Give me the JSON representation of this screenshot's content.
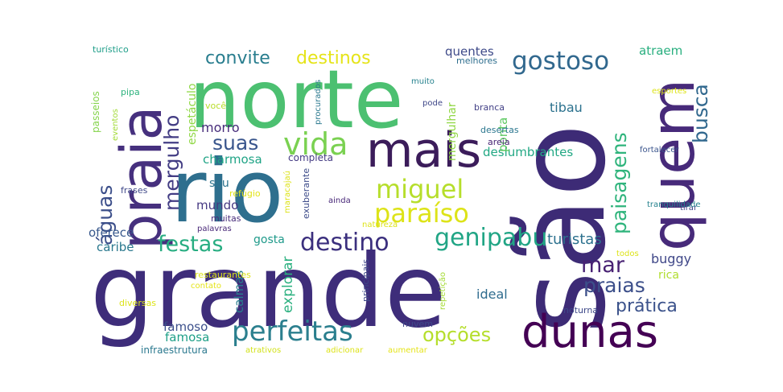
{
  "wordcloud": {
    "palette": "viridis",
    "background": "#ffffff",
    "words": [
      {
        "text": "grande",
        "color": "#3e2d7a"
      },
      {
        "text": "são",
        "color": "#3d2b76"
      },
      {
        "text": "rio",
        "color": "#2e6f8e"
      },
      {
        "text": "norte",
        "color": "#4cc071"
      },
      {
        "text": "quem",
        "color": "#472a7a"
      },
      {
        "text": "praia",
        "color": "#46307e"
      },
      {
        "text": "mais",
        "color": "#3b1c5a"
      },
      {
        "text": "dunas",
        "color": "#440154"
      },
      {
        "text": "perfeitas",
        "color": "#2b7f8e"
      },
      {
        "text": "vida",
        "color": "#7ad151"
      },
      {
        "text": "miguel",
        "color": "#b6de2b"
      },
      {
        "text": "paraíso",
        "color": "#dde318"
      },
      {
        "text": "genipabu",
        "color": "#21a585"
      },
      {
        "text": "destino",
        "color": "#3b2f7e"
      },
      {
        "text": "festas",
        "color": "#27ad81"
      },
      {
        "text": "gostoso",
        "color": "#31688e"
      },
      {
        "text": "convite",
        "color": "#287d8e"
      },
      {
        "text": "destinos",
        "color": "#e5e419"
      },
      {
        "text": "mergulho",
        "color": "#433d84"
      },
      {
        "text": "águas",
        "color": "#3c4f8a"
      },
      {
        "text": "suas",
        "color": "#39558c"
      },
      {
        "text": "paisagens",
        "color": "#2fb47c"
      },
      {
        "text": "busca",
        "color": "#31688e"
      },
      {
        "text": "mar",
        "color": "#482173"
      },
      {
        "text": "praias",
        "color": "#3c4f8a"
      },
      {
        "text": "prática",
        "color": "#3b528b"
      },
      {
        "text": "opções",
        "color": "#b5de2b"
      },
      {
        "text": "turistas",
        "color": "#2c718e"
      },
      {
        "text": "deslumbrantes",
        "color": "#22a884"
      },
      {
        "text": "quentes",
        "color": "#3e4a89"
      },
      {
        "text": "atraem",
        "color": "#29af7f"
      },
      {
        "text": "tibau",
        "color": "#2c728e"
      },
      {
        "text": "ponta",
        "color": "#5ec962"
      },
      {
        "text": "mergulhar",
        "color": "#90d743"
      },
      {
        "text": "morro",
        "color": "#472c7a"
      },
      {
        "text": "charmosa",
        "color": "#20a486"
      },
      {
        "text": "espetáculo",
        "color": "#8fd744"
      },
      {
        "text": "passeios",
        "color": "#84d44b"
      },
      {
        "text": "turístico",
        "color": "#1f9e89"
      },
      {
        "text": "você",
        "color": "#b8de29"
      },
      {
        "text": "pipa",
        "color": "#2db27d"
      },
      {
        "text": "eventos",
        "color": "#a2da37"
      },
      {
        "text": "procurados",
        "color": "#2a788e"
      },
      {
        "text": "melhores",
        "color": "#2e6e8e"
      },
      {
        "text": "muito",
        "color": "#26828e"
      },
      {
        "text": "pode",
        "color": "#3f4788"
      },
      {
        "text": "esportes",
        "color": "#dde318"
      },
      {
        "text": "branca",
        "color": "#424086"
      },
      {
        "text": "desertas",
        "color": "#2a768e"
      },
      {
        "text": "areia",
        "color": "#482475"
      },
      {
        "text": "todos",
        "color": "#dde318"
      },
      {
        "text": "fortalecer",
        "color": "#3a548c"
      },
      {
        "text": "completa",
        "color": "#443a83"
      },
      {
        "text": "seu",
        "color": "#2b748e"
      },
      {
        "text": "refúgio",
        "color": "#e2e418"
      },
      {
        "text": "frases",
        "color": "#3f4889"
      },
      {
        "text": "maracajaú",
        "color": "#dde318"
      },
      {
        "text": "exuberante",
        "color": "#3e4c8a"
      },
      {
        "text": "ainda",
        "color": "#482878"
      },
      {
        "text": "tirar",
        "color": "#414487"
      },
      {
        "text": "tranquilidade",
        "color": "#26828e"
      },
      {
        "text": "mundo",
        "color": "#453882"
      },
      {
        "text": "muitas",
        "color": "#472c7a"
      },
      {
        "text": "palavras",
        "color": "#482878"
      },
      {
        "text": "natureza",
        "color": "#dde318"
      },
      {
        "text": "oferece",
        "color": "#38588c"
      },
      {
        "text": "caribe",
        "color": "#2a788e"
      },
      {
        "text": "gosta",
        "color": "#1f9a8a"
      },
      {
        "text": "explorar",
        "color": "#2ab07f"
      },
      {
        "text": "buggy",
        "color": "#3f4788"
      },
      {
        "text": "rica",
        "color": "#b0dd2f"
      },
      {
        "text": "ideal",
        "color": "#2f6c8e"
      },
      {
        "text": "calmas",
        "color": "#287c8e"
      },
      {
        "text": "restaurantes",
        "color": "#dde318"
      },
      {
        "text": "contato",
        "color": "#e5e419"
      },
      {
        "text": "principais",
        "color": "#3f4889"
      },
      {
        "text": "repetição",
        "color": "#a5db36"
      },
      {
        "text": "noturna",
        "color": "#3e4989"
      },
      {
        "text": "diversas",
        "color": "#dde318"
      },
      {
        "text": "famoso",
        "color": "#3c508b"
      },
      {
        "text": "famosa",
        "color": "#1fa088"
      },
      {
        "text": "nuvem",
        "color": "#3f4889"
      },
      {
        "text": "infraestrutura",
        "color": "#2a788e"
      },
      {
        "text": "atrativos",
        "color": "#d2e21b"
      },
      {
        "text": "adicionar",
        "color": "#dde318"
      },
      {
        "text": "aumentar",
        "color": "#e5e419"
      }
    ]
  }
}
